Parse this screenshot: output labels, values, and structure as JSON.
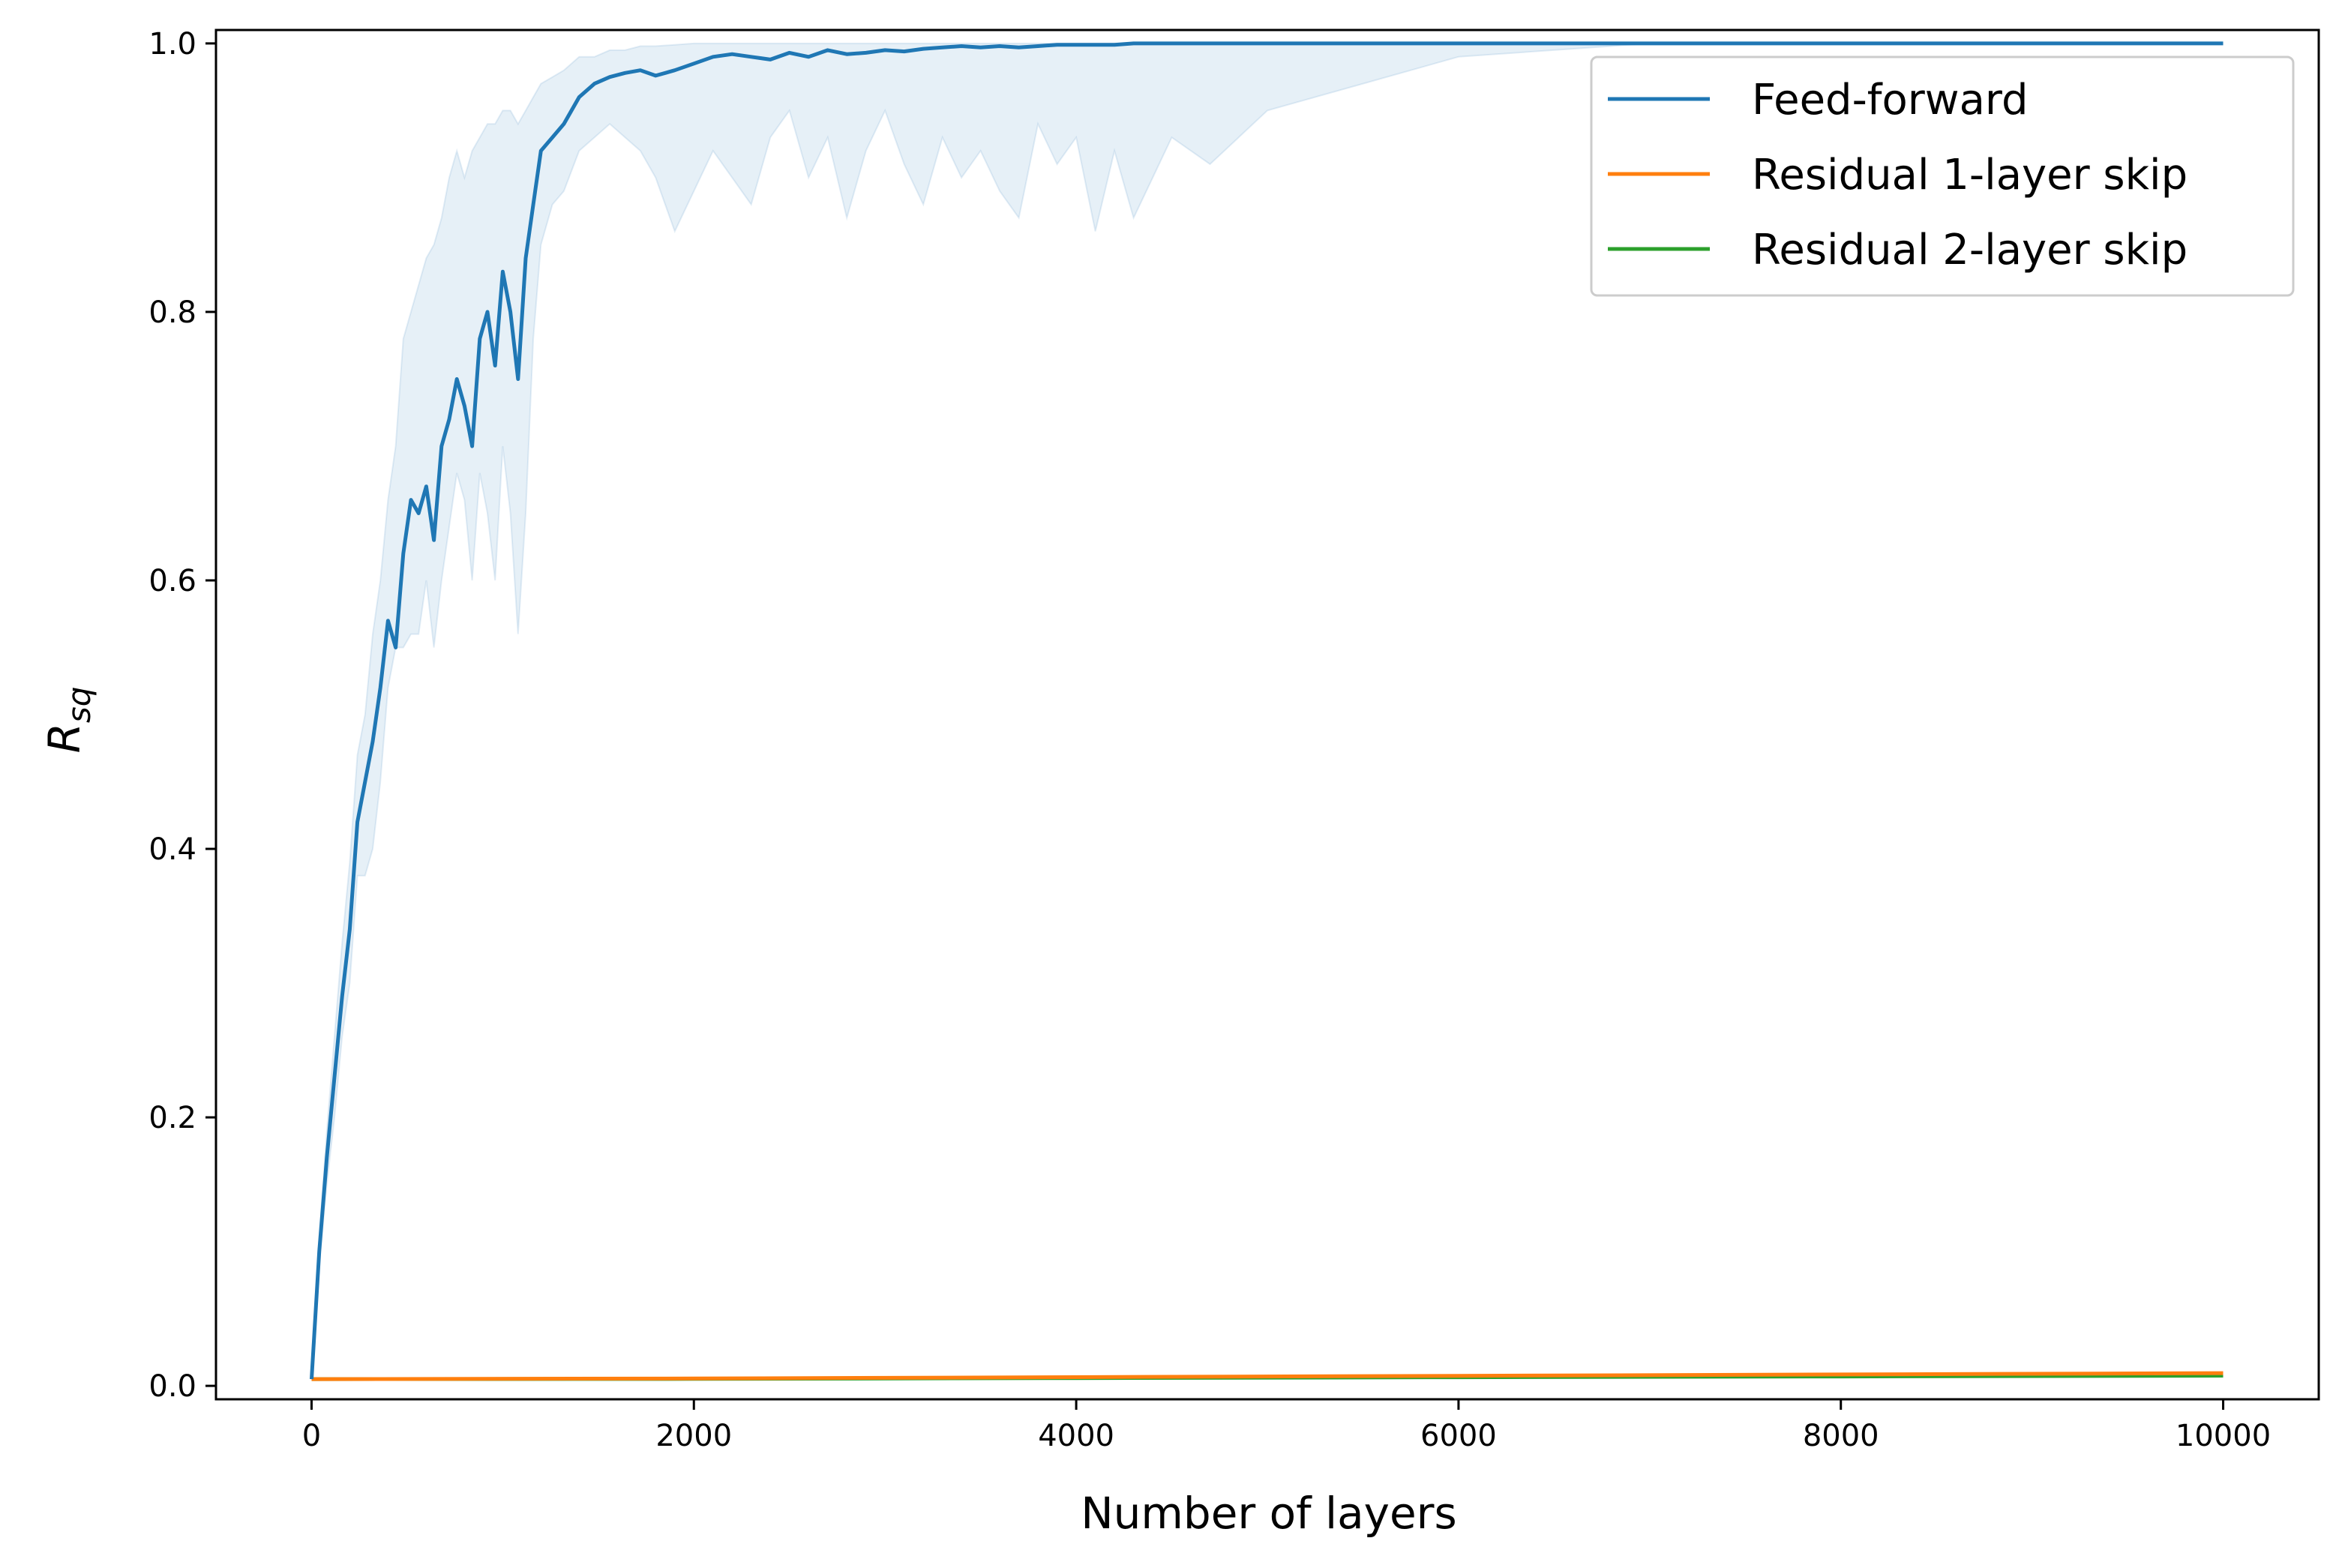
{
  "chart_data": {
    "type": "line",
    "title": "",
    "xlabel": "Number of layers",
    "ylabel": "R",
    "ylabel_subscript": "sq",
    "xlim": [
      -500,
      10500
    ],
    "ylim": [
      -0.01,
      1.01
    ],
    "xticks": [
      0,
      2000,
      4000,
      6000,
      8000,
      10000
    ],
    "xtick_labels": [
      "0",
      "2000",
      "4000",
      "6000",
      "8000",
      "10000"
    ],
    "yticks": [
      0.0,
      0.2,
      0.4,
      0.6,
      0.8,
      1.0
    ],
    "ytick_labels": [
      "0.0",
      "0.2",
      "0.4",
      "0.6",
      "0.8",
      "1.0"
    ],
    "grid": false,
    "legend": {
      "position": "top-right",
      "entries": [
        "Feed-forward",
        "Residual 1-layer skip",
        "Residual 2-layer skip"
      ]
    },
    "series": [
      {
        "name": "Feed-forward",
        "color": "#1f77b4",
        "x": [
          0,
          40,
          80,
          120,
          160,
          200,
          240,
          280,
          320,
          360,
          400,
          440,
          480,
          520,
          560,
          600,
          640,
          680,
          720,
          760,
          800,
          840,
          880,
          920,
          960,
          1000,
          1040,
          1080,
          1120,
          1160,
          1200,
          1260,
          1320,
          1400,
          1480,
          1560,
          1640,
          1720,
          1800,
          1900,
          2000,
          2100,
          2200,
          2300,
          2400,
          2500,
          2600,
          2700,
          2800,
          2900,
          3000,
          3100,
          3200,
          3300,
          3400,
          3500,
          3600,
          3700,
          3800,
          3900,
          4000,
          4100,
          4200,
          4300,
          4400,
          4500,
          4700,
          5000,
          5500,
          6000,
          7000,
          8000,
          9000,
          10000
        ],
        "y": [
          0.005,
          0.1,
          0.17,
          0.23,
          0.29,
          0.34,
          0.42,
          0.45,
          0.48,
          0.52,
          0.57,
          0.55,
          0.62,
          0.66,
          0.65,
          0.67,
          0.63,
          0.7,
          0.72,
          0.75,
          0.73,
          0.7,
          0.78,
          0.8,
          0.76,
          0.83,
          0.8,
          0.75,
          0.84,
          0.88,
          0.92,
          0.93,
          0.94,
          0.96,
          0.97,
          0.975,
          0.978,
          0.98,
          0.976,
          0.98,
          0.985,
          0.99,
          0.992,
          0.99,
          0.988,
          0.993,
          0.99,
          0.995,
          0.992,
          0.993,
          0.995,
          0.994,
          0.996,
          0.997,
          0.998,
          0.997,
          0.998,
          0.997,
          0.998,
          0.999,
          0.999,
          0.999,
          0.999,
          1.0,
          1.0,
          1.0,
          1.0,
          1.0,
          1.0,
          1.0,
          1.0,
          1.0,
          1.0,
          1.0
        ],
        "band_lower": [
          0.005,
          0.09,
          0.15,
          0.2,
          0.26,
          0.3,
          0.38,
          0.38,
          0.4,
          0.45,
          0.52,
          0.55,
          0.55,
          0.56,
          0.56,
          0.6,
          0.55,
          0.6,
          0.64,
          0.68,
          0.66,
          0.6,
          0.68,
          0.65,
          0.6,
          0.7,
          0.65,
          0.56,
          0.65,
          0.78,
          0.85,
          0.88,
          0.89,
          0.92,
          0.93,
          0.94,
          0.93,
          0.92,
          0.9,
          0.86,
          0.89,
          0.92,
          0.9,
          0.88,
          0.93,
          0.95,
          0.9,
          0.93,
          0.87,
          0.92,
          0.95,
          0.91,
          0.88,
          0.93,
          0.9,
          0.92,
          0.89,
          0.87,
          0.94,
          0.91,
          0.93,
          0.86,
          0.92,
          0.87,
          0.9,
          0.93,
          0.91,
          0.95,
          0.97,
          0.99,
          1.0,
          1.0,
          1.0,
          1.0
        ],
        "band_upper": [
          0.005,
          0.11,
          0.19,
          0.26,
          0.33,
          0.39,
          0.47,
          0.5,
          0.56,
          0.6,
          0.66,
          0.7,
          0.78,
          0.8,
          0.82,
          0.84,
          0.85,
          0.87,
          0.9,
          0.92,
          0.9,
          0.92,
          0.93,
          0.94,
          0.94,
          0.95,
          0.95,
          0.94,
          0.95,
          0.96,
          0.97,
          0.975,
          0.98,
          0.99,
          0.99,
          0.995,
          0.995,
          0.998,
          0.998,
          0.999,
          1.0,
          1.0,
          1.0,
          1.0,
          1.0,
          1.0,
          1.0,
          1.0,
          1.0,
          1.0,
          1.0,
          1.0,
          1.0,
          1.0,
          1.0,
          1.0,
          1.0,
          1.0,
          1.0,
          1.0,
          1.0,
          1.0,
          1.0,
          1.0,
          1.0,
          1.0,
          1.0,
          1.0,
          1.0,
          1.0,
          1.0,
          1.0,
          1.0,
          1.0
        ]
      },
      {
        "name": "Residual 1-layer skip",
        "color": "#ff7f0e",
        "x": [
          0,
          2000,
          4000,
          6000,
          8000,
          10000
        ],
        "y": [
          0.005,
          0.0055,
          0.0065,
          0.0075,
          0.0085,
          0.0095
        ]
      },
      {
        "name": "Residual 2-layer skip",
        "color": "#2ca02c",
        "x": [
          0,
          2000,
          4000,
          6000,
          8000,
          10000
        ],
        "y": [
          0.005,
          0.0052,
          0.0058,
          0.0064,
          0.007,
          0.0076
        ]
      }
    ]
  }
}
